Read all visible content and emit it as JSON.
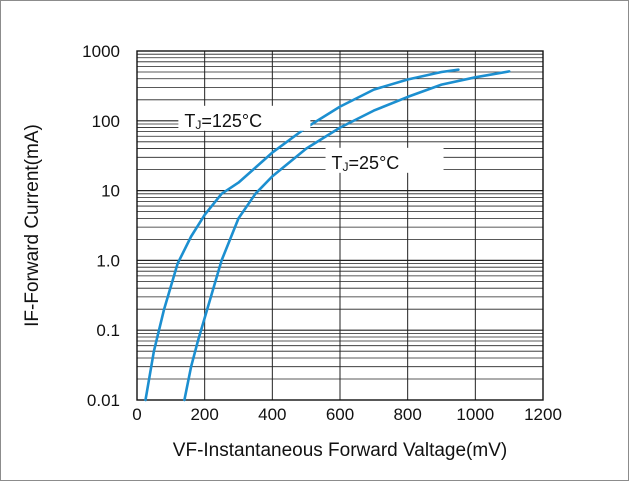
{
  "chart_data": {
    "type": "line",
    "title": "",
    "xlabel": "VF-Instantaneous Forward Valtage(mV)",
    "ylabel": "IF-Forward Current(mA)",
    "xlim": [
      0,
      1200
    ],
    "ylim": [
      0.01,
      1000
    ],
    "yscale": "log",
    "grid": true,
    "x_ticks": [
      "0",
      "200",
      "400",
      "600",
      "800",
      "1000",
      "1200"
    ],
    "y_ticks": [
      "0.01",
      "0.1",
      "1.0",
      "10",
      "100",
      "1000"
    ],
    "x_tick_values": [
      0,
      200,
      400,
      600,
      800,
      1000,
      1200
    ],
    "y_tick_values": [
      0.01,
      0.1,
      1,
      10,
      100,
      1000
    ],
    "line_color": "#1c8fd0",
    "series": [
      {
        "name": "TJ=125°C",
        "label_main": "T",
        "label_sub": "J",
        "label_rest": "=125°C",
        "x": [
          25,
          50,
          80,
          120,
          160,
          200,
          250,
          300,
          400,
          500,
          600,
          700,
          800,
          900,
          950
        ],
        "y": [
          0.01,
          0.05,
          0.2,
          0.9,
          2.2,
          4.5,
          9,
          13,
          35,
          80,
          160,
          280,
          390,
          500,
          540
        ]
      },
      {
        "name": "TJ=25°C",
        "label_main": "T",
        "label_sub": "J",
        "label_rest": "=25°C",
        "x": [
          140,
          160,
          180,
          200,
          250,
          300,
          350,
          400,
          500,
          600,
          700,
          800,
          900,
          1000,
          1100
        ],
        "y": [
          0.01,
          0.03,
          0.07,
          0.15,
          1,
          4,
          9,
          16,
          40,
          80,
          140,
          220,
          330,
          420,
          510
        ]
      }
    ]
  }
}
